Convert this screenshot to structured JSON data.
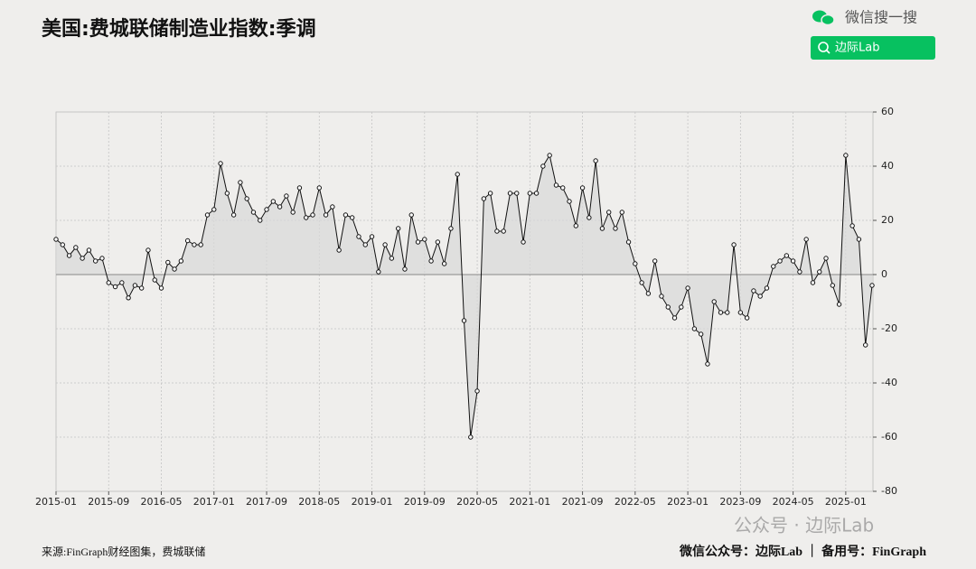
{
  "chart_data": {
    "type": "line",
    "title": "美国:费城联储制造业指数:季调",
    "categories": [
      "2015-01",
      null,
      null,
      null,
      null,
      null,
      null,
      null,
      "2015-09",
      null,
      null,
      null,
      null,
      null,
      null,
      null,
      "2016-05",
      null,
      null,
      null,
      null,
      null,
      null,
      null,
      "2017-01",
      null,
      null,
      null,
      null,
      null,
      null,
      null,
      "2017-09",
      null,
      null,
      null,
      null,
      null,
      null,
      null,
      "2018-05",
      null,
      null,
      null,
      null,
      null,
      null,
      null,
      "2019-01",
      null,
      null,
      null,
      null,
      null,
      null,
      null,
      "2019-09",
      null,
      null,
      null,
      null,
      null,
      null,
      null,
      "2020-05",
      null,
      null,
      null,
      null,
      null,
      null,
      null,
      "2021-01",
      null,
      null,
      null,
      null,
      null,
      null,
      null,
      "2021-09",
      null,
      null,
      null,
      null,
      null,
      null,
      null,
      "2022-05",
      null,
      null,
      null,
      null,
      null,
      null,
      null,
      "2023-01",
      null,
      null,
      null,
      null,
      null,
      null,
      null,
      "2023-09",
      null,
      null,
      null,
      null,
      null,
      null,
      null,
      "2024-05",
      null,
      null,
      null,
      null,
      null,
      null,
      null,
      "2025-01",
      null,
      null,
      null,
      null
    ],
    "values": [
      13,
      11,
      7,
      10,
      6,
      9,
      5,
      6,
      -3,
      -4.5,
      -3,
      -8.6,
      -4,
      -5,
      9,
      -2,
      -5,
      4.5,
      2,
      5,
      12.5,
      11,
      11,
      22,
      24,
      41,
      30,
      22,
      34,
      28,
      23,
      20,
      24,
      27,
      25,
      29,
      23,
      32,
      21,
      22,
      32,
      22,
      25,
      9,
      22,
      21,
      14,
      11,
      14,
      1,
      11,
      6,
      17,
      2,
      22,
      12,
      13,
      5,
      12,
      4,
      17,
      37,
      -17,
      -60,
      -43,
      28,
      30,
      16,
      16,
      30,
      30,
      12,
      30,
      30,
      40,
      44,
      33,
      32,
      27,
      18,
      32,
      21,
      42,
      17,
      23,
      17,
      23,
      12,
      4,
      -3,
      -7,
      5,
      -8,
      -12,
      -16,
      -12,
      -5,
      -20,
      -22,
      -33,
      -10,
      -14,
      -14,
      11,
      -14,
      -16,
      -6,
      -8,
      -5,
      3,
      5,
      7,
      5,
      1,
      13,
      -3,
      1,
      6,
      -4,
      -11,
      44,
      18,
      13,
      -26,
      -4
    ],
    "color": "#111111",
    "fill": "#d9d9d9",
    "ylim": [
      -80,
      60
    ],
    "yticks": [
      -80,
      -60,
      -40,
      -20,
      0,
      20,
      40,
      60
    ],
    "grid": true
  },
  "header": {
    "search_brand": "微信搜一搜",
    "search_box": "边际Lab"
  },
  "watermark": "公众号 · 边际Lab",
  "footer": {
    "source": "来源:FinGraph财经图集，费城联储",
    "account": "微信公众号：边际Lab ｜ 备用号：FinGraph"
  }
}
